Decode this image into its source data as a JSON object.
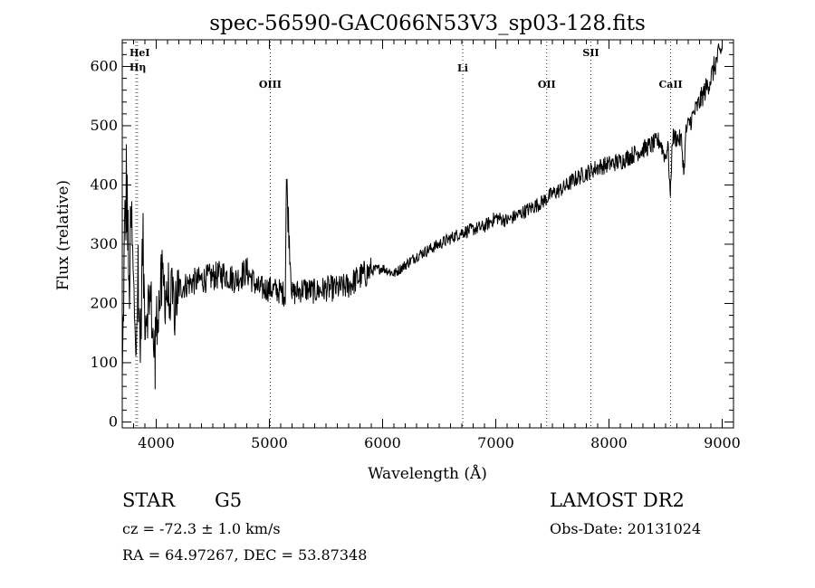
{
  "chart_data": {
    "type": "line",
    "title": "spec-56590-GAC066N53V3_sp03-128.fits",
    "xlabel": "Wavelength (Å)",
    "ylabel": "Flux (relative)",
    "xlim": [
      3700,
      9100
    ],
    "ylim": [
      -10,
      645
    ],
    "xticks": [
      4000,
      5000,
      6000,
      7000,
      8000,
      9000
    ],
    "yticks": [
      0,
      100,
      200,
      300,
      400,
      500,
      600
    ],
    "lines": [
      {
        "label": "HeI",
        "x": 3820
      },
      {
        "label": "Hη",
        "x": 3835
      },
      {
        "label": "OIII",
        "x": 5007
      },
      {
        "label": "Li",
        "x": 6708
      },
      {
        "label": "OII",
        "x": 7450
      },
      {
        "label": "SII",
        "x": 7840
      },
      {
        "label": "CaII",
        "x": 8545
      }
    ],
    "series": [
      {
        "x": [
          3700,
          3720,
          3740,
          3760,
          3780,
          3800,
          3820,
          3840,
          3860,
          3880,
          3900,
          3950,
          3980,
          4000,
          4050,
          4100,
          4150,
          4200,
          4300,
          4400,
          4500,
          4600,
          4700,
          4800,
          4900,
          5000,
          5100,
          5140,
          5150,
          5200,
          5300,
          5400,
          5500,
          5600,
          5700,
          5800,
          5900,
          6000,
          6100,
          6200,
          6300,
          6400,
          6500,
          6600,
          6700,
          6800,
          6900,
          7000,
          7100,
          7200,
          7300,
          7400,
          7500,
          7600,
          7700,
          7800,
          7900,
          8000,
          8100,
          8200,
          8300,
          8400,
          8450,
          8498,
          8520,
          8542,
          8560,
          8600,
          8640,
          8662,
          8680,
          8700,
          8750,
          8800,
          8850,
          8900,
          8950,
          9000
        ],
        "y": [
          70,
          300,
          410,
          210,
          340,
          220,
          140,
          250,
          120,
          300,
          180,
          210,
          120,
          170,
          230,
          220,
          200,
          225,
          235,
          240,
          245,
          250,
          240,
          255,
          225,
          225,
          220,
          215,
          410,
          215,
          225,
          220,
          225,
          225,
          230,
          245,
          255,
          260,
          250,
          265,
          280,
          290,
          300,
          310,
          320,
          325,
          330,
          345,
          340,
          350,
          360,
          370,
          385,
          395,
          410,
          420,
          430,
          435,
          440,
          450,
          460,
          470,
          475,
          445,
          470,
          380,
          480,
          480,
          475,
          420,
          490,
          500,
          520,
          540,
          560,
          580,
          610,
          630
        ]
      }
    ]
  },
  "info": {
    "class_label": "STAR",
    "subclass": "G5",
    "survey": "LAMOST DR2",
    "redshift": "cz = -72.3 ± 1.0 km/s",
    "obs_date": "Obs-Date: 20131024",
    "coords": "RA =  64.97267, DEC =  53.87348"
  }
}
